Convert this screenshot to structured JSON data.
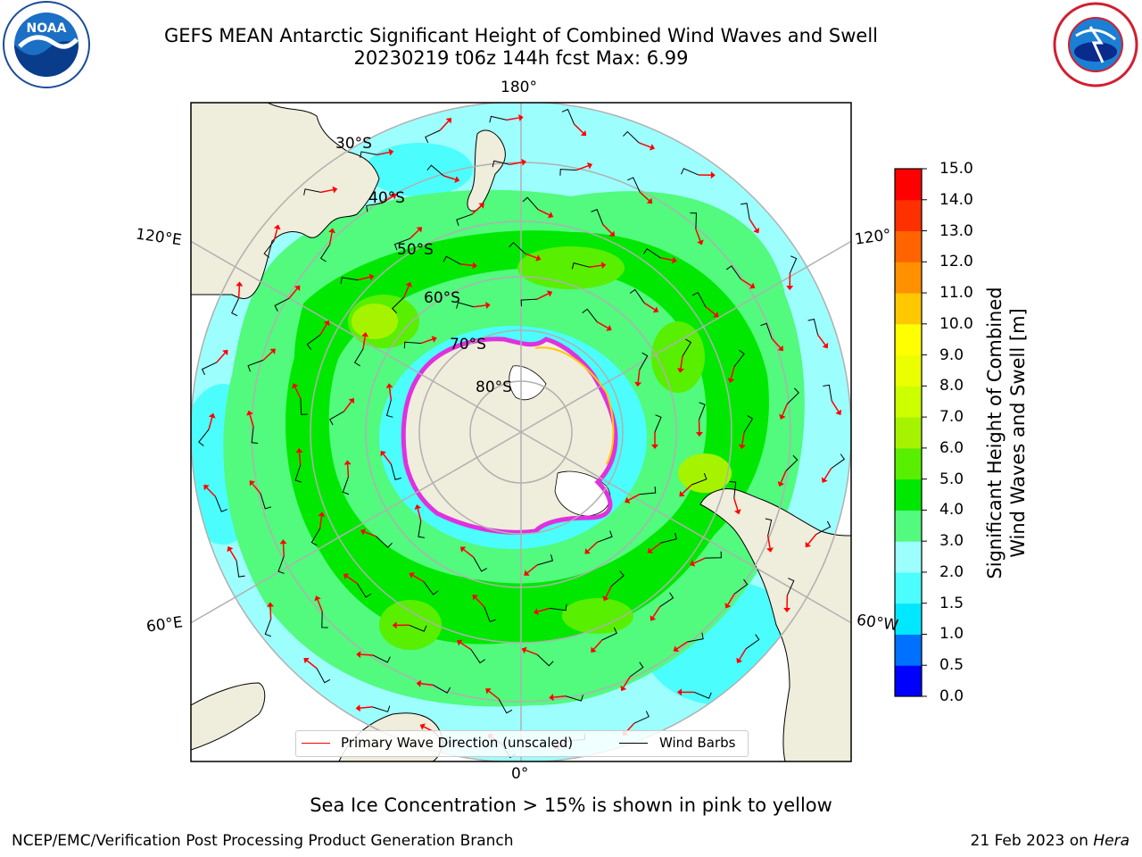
{
  "header": {
    "title_line1": "GEFS MEAN Antarctic Significant Height of Combined Wind Waves and Swell",
    "title_line2": "20230219 t06z 144h fcst   Max: 6.99"
  },
  "logos": {
    "left": "NOAA",
    "left_ring_text": "NATIONAL OCEANIC AND ATMOSPHERIC ADMINISTRATION · U.S. DEPARTMENT OF COMMERCE",
    "right_ring_text": "NATIONAL WEATHER SERVICE"
  },
  "map": {
    "projection": "south-polar-stereographic",
    "lon_labels": {
      "top": "180°",
      "left_upper": "120°E",
      "right_upper": "120°",
      "left_lower": "60°E",
      "right_lower": "60°W",
      "bottom": "0°"
    },
    "lat_labels": [
      "30°S",
      "40°S",
      "50°S",
      "60°S",
      "70°S",
      "80°S"
    ],
    "colors": {
      "land": "#efeddb",
      "ice_edge": "#e030e0",
      "arrow": "#ff0000",
      "barb": "#000000",
      "grid": "#b0b0b0"
    }
  },
  "legend": {
    "entries": [
      {
        "label": "Primary Wave Direction (unscaled)",
        "color": "#ff0000"
      },
      {
        "label": "Wind Barbs",
        "color": "#000000"
      }
    ]
  },
  "colorbar": {
    "label_line1": "Significant Height of Combined",
    "label_line2": "Wind Waves and Swell [m]",
    "ticks": [
      "0.0",
      "0.5",
      "1.0",
      "1.5",
      "2.0",
      "3.0",
      "4.0",
      "5.0",
      "6.0",
      "7.0",
      "8.0",
      "9.0",
      "10.0",
      "11.0",
      "12.0",
      "13.0",
      "14.0",
      "15.0"
    ],
    "colors": [
      "#0000ff",
      "#0070ff",
      "#00e8ff",
      "#4cfdfd",
      "#9dfefe",
      "#52fa7e",
      "#00e800",
      "#58ef00",
      "#a6f300",
      "#ccff00",
      "#ecff00",
      "#ffff00",
      "#ffc800",
      "#ff9000",
      "#ff6400",
      "#ff3000",
      "#ff0000"
    ]
  },
  "subtitle": "Sea Ice Concentration > 15% is shown in pink to yellow",
  "footer": {
    "left": "NCEP/EMC/Verification Post Processing Product Generation Branch",
    "right_date": "21 Feb 2023 on ",
    "right_host": "Hera"
  }
}
